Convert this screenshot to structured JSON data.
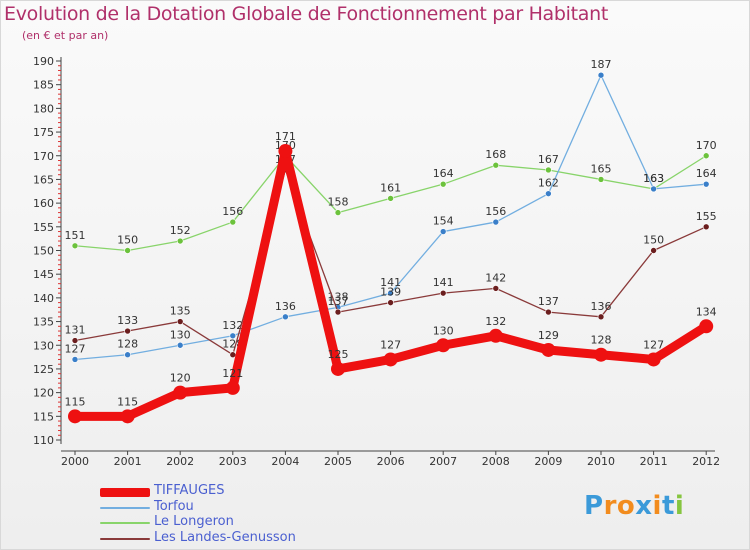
{
  "header": {
    "title": "Evolution de la Dotation Globale de Fonctionnement par Habitant",
    "subtitle": "(en € et par an)"
  },
  "chart_data": {
    "type": "line",
    "title": "Evolution de la Dotation Globale de Fonctionnement par Habitant",
    "subtitle": "(en € et par an)",
    "xlabel": "",
    "ylabel": "",
    "categories": [
      "2000",
      "2001",
      "2002",
      "2003",
      "2004",
      "2005",
      "2006",
      "2007",
      "2008",
      "2009",
      "2010",
      "2011",
      "2012"
    ],
    "ylim": [
      110,
      190
    ],
    "yticks": [
      110,
      115,
      120,
      125,
      130,
      135,
      140,
      145,
      150,
      155,
      160,
      165,
      170,
      175,
      180,
      185,
      190
    ],
    "grid": false,
    "legend_position": "bottom-left",
    "series": [
      {
        "name": "Le Longeron",
        "color": "#88d46a",
        "marker": "#6cc23c",
        "values": [
          151,
          150,
          152,
          156,
          170,
          158,
          161,
          164,
          168,
          167,
          165,
          163,
          170
        ]
      },
      {
        "name": "Torfou",
        "color": "#72aee0",
        "marker": "#3a7fc9",
        "values": [
          127,
          128,
          130,
          132,
          136,
          138,
          141,
          154,
          156,
          162,
          187,
          163,
          164
        ]
      },
      {
        "name": "Les Landes-Genusson",
        "color": "#8a3a3a",
        "marker": "#6b1e1e",
        "values": [
          131,
          133,
          135,
          128,
          167,
          137,
          139,
          141,
          142,
          137,
          136,
          150,
          155
        ]
      },
      {
        "name": "TIFFAUGES",
        "color": "#ee1111",
        "marker": "#ee1111",
        "values": [
          115,
          115,
          120,
          121,
          171,
          125,
          127,
          130,
          132,
          129,
          128,
          127,
          134
        ]
      }
    ],
    "legend_order": [
      "TIFFAUGES",
      "Torfou",
      "Le Longeron",
      "Les Landes-Genusson"
    ]
  },
  "logo": {
    "text": "Proxiti",
    "letters": [
      "P",
      "r",
      "o",
      "x",
      "i",
      "t",
      "i"
    ],
    "colors": [
      "#3b9ad9",
      "#f28c1e",
      "#f28c1e",
      "#3b9ad9",
      "#f28c1e",
      "#3b9ad9",
      "#86c540"
    ]
  }
}
